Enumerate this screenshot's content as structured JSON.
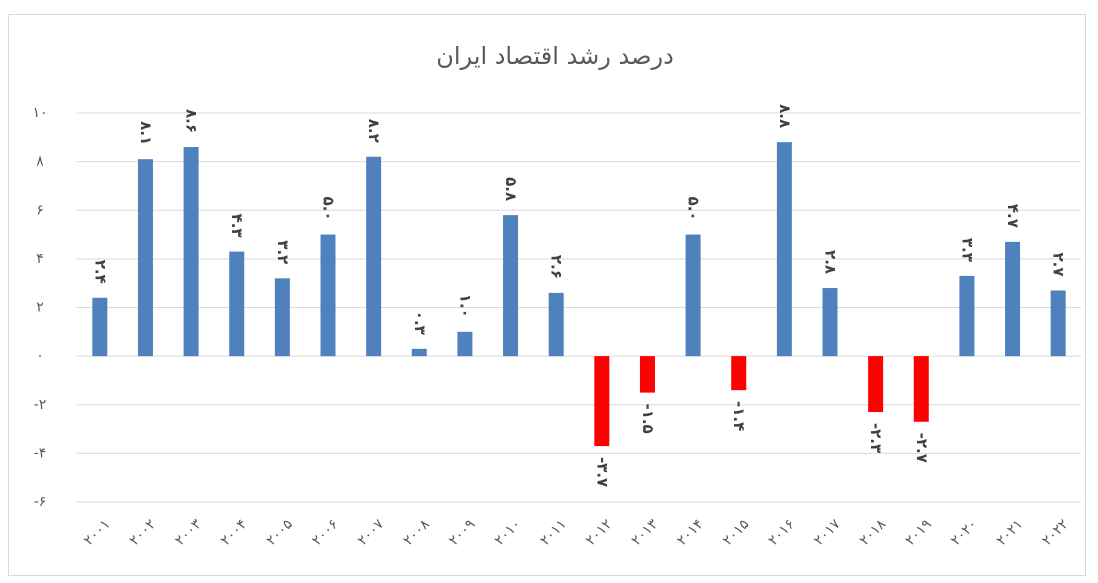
{
  "chart_data": {
    "type": "bar",
    "title": "درصد رشد اقتصاد ایران",
    "categories": [
      "۲۰۰۱",
      "۲۰۰۲",
      "۲۰۰۳",
      "۲۰۰۴",
      "۲۰۰۵",
      "۲۰۰۶",
      "۲۰۰۷",
      "۲۰۰۸",
      "۲۰۰۹",
      "۲۰۱۰",
      "۲۰۱۱",
      "۲۰۱۲",
      "۲۰۱۳",
      "۲۰۱۴",
      "۲۰۱۵",
      "۲۰۱۶",
      "۲۰۱۷",
      "۲۰۱۸",
      "۲۰۱۹",
      "۲۰۲۰",
      "۲۰۲۱",
      "۲۰۲۲"
    ],
    "values": [
      2.4,
      8.1,
      8.6,
      4.3,
      3.2,
      5.0,
      8.2,
      0.3,
      1.0,
      5.8,
      2.6,
      -3.7,
      -1.5,
      5.0,
      -1.4,
      8.8,
      2.8,
      -2.3,
      -2.7,
      3.3,
      4.7,
      2.7
    ],
    "value_labels": [
      "۲.۴",
      "۸.۱",
      "۸.۶",
      "۴.۳",
      "۳.۲",
      "۵.۰",
      "۸.۲",
      "۰.۳",
      "۱.۰",
      "۵.۸",
      "۲.۶",
      "-۳.۷",
      "-۱.۵",
      "۵.۰",
      "-۱.۴",
      "۸.۸",
      "۲.۸",
      "-۲.۳",
      "-۲.۷",
      "۳.۳",
      "۴.۷",
      "۲.۷"
    ],
    "color": "#4f81bd",
    "negative_color": "#ff0000",
    "ylim": [
      -6,
      10
    ],
    "yticks": [
      {
        "value": -6,
        "label": "-۶"
      },
      {
        "value": -4,
        "label": "-۴"
      },
      {
        "value": -2,
        "label": "-۲"
      },
      {
        "value": 0,
        "label": "۰"
      },
      {
        "value": 2,
        "label": "۲"
      },
      {
        "value": 4,
        "label": "۴"
      },
      {
        "value": 6,
        "label": "۶"
      },
      {
        "value": 8,
        "label": "۸"
      },
      {
        "value": 10,
        "label": "۱۰"
      }
    ],
    "grid": true
  }
}
